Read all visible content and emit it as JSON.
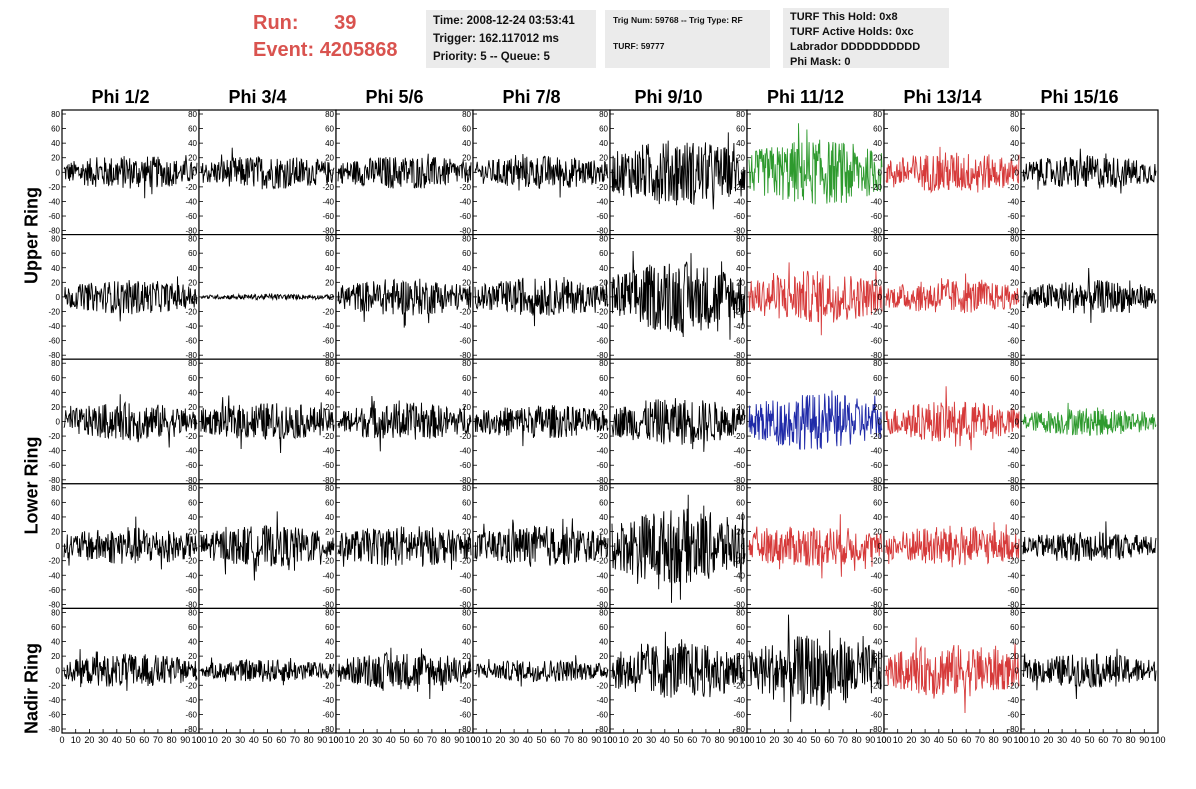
{
  "header": {
    "run_label": "Run:",
    "run_value": "39",
    "event_label": "Event:",
    "event_value": "4205868",
    "time_box": {
      "time": "Time: 2008-12-24 03:53:41",
      "trigger": "Trigger: 162.117012 ms",
      "priority": "Priority: 5 -- Queue: 5"
    },
    "trig_box": {
      "trig": "Trig Num: 59768 -- Trig Type: RF",
      "turf": "TURF: 59777"
    },
    "turf_box": {
      "hold": "TURF This Hold: 0x8",
      "active": "TURF Active Holds: 0xc",
      "labrador": "Labrador DDDDDDDDDD",
      "phimask": "Phi Mask: 0"
    },
    "colors": {
      "run_text": "#d9534f",
      "box_bg": "#ebebeb"
    }
  },
  "columns": [
    "Phi 1/2",
    "Phi 3/4",
    "Phi 5/6",
    "Phi 7/8",
    "Phi 9/10",
    "Phi 11/12",
    "Phi 13/14",
    "Phi 15/16"
  ],
  "rings": [
    "Upper Ring",
    "Lower Ring",
    "Nadir Ring"
  ],
  "chart_data": {
    "type": "line",
    "description_rows": 5,
    "description_cols": 8,
    "ylim": [
      -80,
      80
    ],
    "xlim": [
      0,
      100
    ],
    "y_ticks": [
      -80,
      -60,
      -40,
      -20,
      0,
      20,
      40,
      60,
      80
    ],
    "x_tick_labels": [
      "0",
      "10",
      "20",
      "30",
      "40",
      "50",
      "60",
      "70",
      "80",
      "90",
      "100"
    ],
    "panels": [
      [
        {
          "color": "#000000",
          "amp": 18,
          "noise": 0.9
        },
        {
          "color": "#000000",
          "amp": 18,
          "noise": 0.9
        },
        {
          "color": "#000000",
          "amp": 18,
          "noise": 0.9
        },
        {
          "color": "#000000",
          "amp": 18,
          "noise": 0.9
        },
        {
          "color": "#000000",
          "amp": 35,
          "noise": 0.9
        },
        {
          "color": "#2e9a2e",
          "amp": 35,
          "noise": 0.9
        },
        {
          "color": "#d63a3a",
          "amp": 22,
          "noise": 0.9
        },
        {
          "color": "#000000",
          "amp": 18,
          "noise": 0.9
        }
      ],
      [
        {
          "color": "#000000",
          "amp": 18,
          "noise": 0.9
        },
        {
          "color": "#000000",
          "amp": 3,
          "noise": 0.9
        },
        {
          "color": "#000000",
          "amp": 20,
          "noise": 0.9
        },
        {
          "color": "#000000",
          "amp": 20,
          "noise": 0.9
        },
        {
          "color": "#000000",
          "amp": 38,
          "noise": 0.9
        },
        {
          "color": "#d63a3a",
          "amp": 28,
          "noise": 0.9
        },
        {
          "color": "#d63a3a",
          "amp": 18,
          "noise": 0.9
        },
        {
          "color": "#000000",
          "amp": 18,
          "noise": 0.9
        }
      ],
      [
        {
          "color": "#000000",
          "amp": 20,
          "noise": 0.9
        },
        {
          "color": "#000000",
          "amp": 20,
          "noise": 0.9
        },
        {
          "color": "#000000",
          "amp": 20,
          "noise": 0.9
        },
        {
          "color": "#000000",
          "amp": 18,
          "noise": 0.9
        },
        {
          "color": "#000000",
          "amp": 25,
          "noise": 0.9
        },
        {
          "color": "#1f2aa8",
          "amp": 30,
          "noise": 0.9
        },
        {
          "color": "#d63a3a",
          "amp": 22,
          "noise": 0.9
        },
        {
          "color": "#2e9a2e",
          "amp": 15,
          "noise": 0.9
        }
      ],
      [
        {
          "color": "#000000",
          "amp": 20,
          "noise": 0.9
        },
        {
          "color": "#000000",
          "amp": 22,
          "noise": 0.9
        },
        {
          "color": "#000000",
          "amp": 22,
          "noise": 0.9
        },
        {
          "color": "#000000",
          "amp": 22,
          "noise": 0.9
        },
        {
          "color": "#000000",
          "amp": 40,
          "noise": 0.9
        },
        {
          "color": "#d63a3a",
          "amp": 22,
          "noise": 0.9
        },
        {
          "color": "#d63a3a",
          "amp": 22,
          "noise": 0.9
        },
        {
          "color": "#000000",
          "amp": 16,
          "noise": 0.9
        }
      ],
      [
        {
          "color": "#000000",
          "amp": 18,
          "noise": 0.9
        },
        {
          "color": "#000000",
          "amp": 12,
          "noise": 0.9
        },
        {
          "color": "#000000",
          "amp": 20,
          "noise": 0.9
        },
        {
          "color": "#000000",
          "amp": 12,
          "noise": 0.9
        },
        {
          "color": "#000000",
          "amp": 30,
          "noise": 0.9
        },
        {
          "color": "#000000",
          "amp": 38,
          "noise": 0.9
        },
        {
          "color": "#d63a3a",
          "amp": 28,
          "noise": 0.9
        },
        {
          "color": "#000000",
          "amp": 18,
          "noise": 0.9
        }
      ]
    ]
  }
}
